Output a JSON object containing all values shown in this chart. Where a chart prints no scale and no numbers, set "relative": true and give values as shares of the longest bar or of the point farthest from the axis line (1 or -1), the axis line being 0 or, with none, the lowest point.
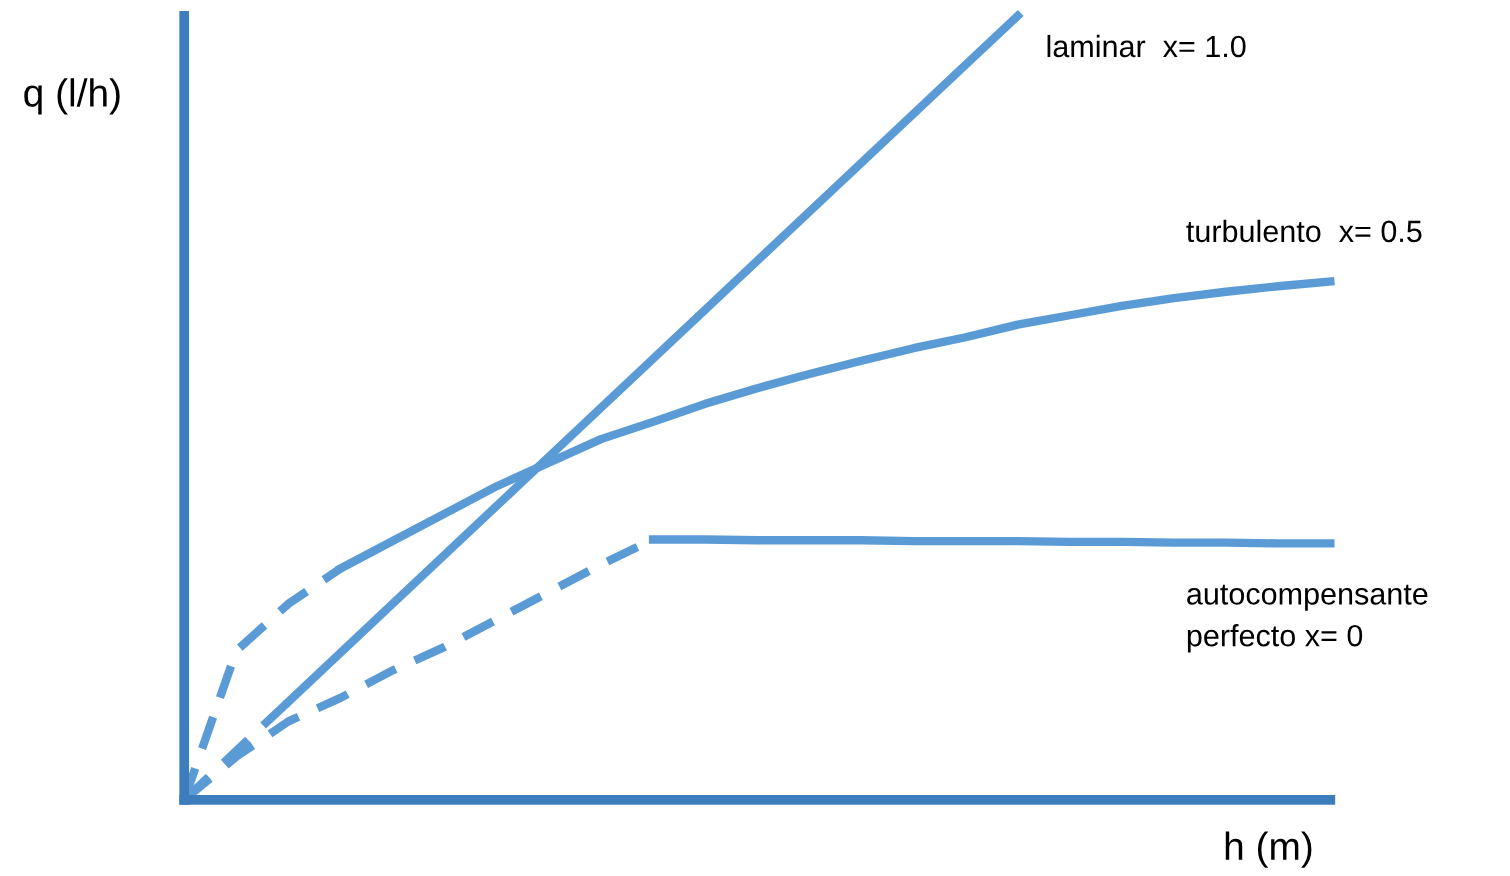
{
  "chart_data": {
    "type": "line",
    "relative": true,
    "xlabel": "h (m)",
    "ylabel": "q (l/h)",
    "legend": false,
    "marker": "none",
    "categories": [
      null,
      null,
      null,
      null,
      null,
      null,
      null,
      null,
      null,
      null,
      null,
      null,
      null,
      null,
      null,
      null,
      null,
      null,
      null,
      null,
      null,
      null,
      null
    ],
    "series": [
      {
        "name": "laminar  x= 1.0",
        "color": "#5b9bd5",
        "line_style": "solid",
        "values": [
          null,
          null,
          0.125,
          0.1875,
          0.25,
          0.3125,
          0.375,
          0.4375,
          0.5,
          0.5625,
          0.625,
          0.6875,
          0.75,
          0.8125,
          0.875,
          0.9375,
          1.0,
          null,
          null,
          null,
          null,
          null,
          null
        ]
      },
      {
        "color": "#5b9bd5",
        "line_style": "dashed",
        "values": [
          0,
          0.0625,
          0.125,
          null,
          null,
          null,
          null,
          null,
          null,
          null,
          null,
          null,
          null,
          null,
          null,
          null,
          null,
          null,
          null,
          null,
          null,
          null,
          null
        ]
      },
      {
        "name": "turbulento  x= 0.5",
        "color": "#5b9bd5",
        "line_style": "solid",
        "values": [
          null,
          null,
          null,
          0.295,
          0.33,
          0.365,
          0.4,
          0.43,
          0.46,
          0.482,
          0.505,
          0.525,
          0.543,
          0.56,
          0.576,
          0.59,
          0.606,
          0.618,
          0.63,
          0.64,
          0.648,
          0.655,
          0.661
        ]
      },
      {
        "color": "#5b9bd5",
        "line_style": "dashed",
        "values": [
          0,
          0.19,
          0.25,
          0.295,
          null,
          null,
          null,
          null,
          null,
          null,
          null,
          null,
          null,
          null,
          null,
          null,
          null,
          null,
          null,
          null,
          null,
          null,
          null
        ]
      },
      {
        "name": "autocompensante\nperfecto x= 0",
        "color": "#5b9bd5",
        "line_style": "solid",
        "values": [
          null,
          null,
          null,
          null,
          null,
          null,
          null,
          null,
          null,
          0.332,
          0.332,
          0.331,
          0.331,
          0.331,
          0.33,
          0.33,
          0.33,
          0.329,
          0.329,
          0.328,
          0.328,
          0.327,
          0.327
        ]
      },
      {
        "color": "#5b9bd5",
        "line_style": "dashed",
        "values": [
          0,
          0.055,
          0.1,
          0.13,
          0.165,
          0.195,
          0.23,
          0.265,
          0.3,
          0.332,
          null,
          null,
          null,
          null,
          null,
          null,
          null,
          null,
          null,
          null,
          null,
          null,
          null
        ]
      }
    ]
  }
}
